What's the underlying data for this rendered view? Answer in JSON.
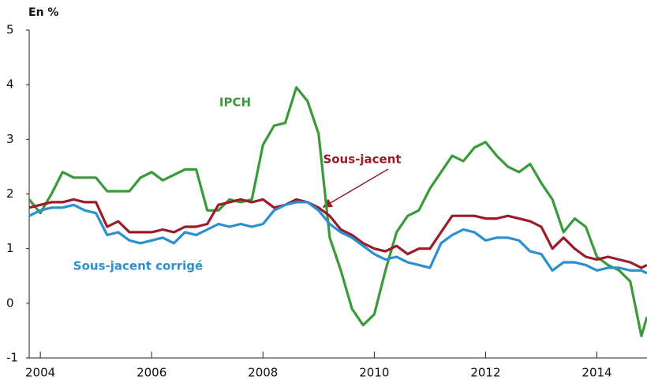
{
  "chart_data": {
    "type": "line",
    "y_label": "En %",
    "x": [
      2003.8,
      2004.0,
      2004.2,
      2004.4,
      2004.6,
      2004.8,
      2005.0,
      2005.2,
      2005.4,
      2005.6,
      2005.8,
      2006.0,
      2006.2,
      2006.4,
      2006.6,
      2006.8,
      2007.0,
      2007.2,
      2007.4,
      2007.6,
      2007.8,
      2008.0,
      2008.2,
      2008.4,
      2008.6,
      2008.8,
      2009.0,
      2009.2,
      2009.4,
      2009.6,
      2009.8,
      2010.0,
      2010.2,
      2010.4,
      2010.6,
      2010.8,
      2011.0,
      2011.2,
      2011.4,
      2011.6,
      2011.8,
      2012.0,
      2012.2,
      2012.4,
      2012.6,
      2012.8,
      2013.0,
      2013.2,
      2013.4,
      2013.6,
      2013.8,
      2014.0,
      2014.2,
      2014.4,
      2014.6,
      2014.8,
      2014.9
    ],
    "series": [
      {
        "name": "IPCH",
        "color": "#3a9a3a",
        "values": [
          1.9,
          1.65,
          2.0,
          2.4,
          2.3,
          2.3,
          2.3,
          2.05,
          2.05,
          2.05,
          2.3,
          2.4,
          2.25,
          2.35,
          2.45,
          2.45,
          1.7,
          1.7,
          1.9,
          1.85,
          1.9,
          2.9,
          3.25,
          3.3,
          3.95,
          3.7,
          3.1,
          1.2,
          0.6,
          -0.1,
          -0.4,
          -0.2,
          0.6,
          1.3,
          1.6,
          1.7,
          2.1,
          2.4,
          2.7,
          2.6,
          2.85,
          2.95,
          2.7,
          2.5,
          2.4,
          2.55,
          2.2,
          1.9,
          1.3,
          1.55,
          1.4,
          0.85,
          0.7,
          0.6,
          0.4,
          -0.6,
          -0.25
        ]
      },
      {
        "name": "Sous-jacent",
        "color": "#9b1c28",
        "values": [
          1.75,
          1.8,
          1.85,
          1.85,
          1.9,
          1.85,
          1.85,
          1.4,
          1.5,
          1.3,
          1.3,
          1.3,
          1.35,
          1.3,
          1.4,
          1.4,
          1.45,
          1.8,
          1.85,
          1.9,
          1.85,
          1.9,
          1.75,
          1.8,
          1.9,
          1.85,
          1.75,
          1.6,
          1.35,
          1.25,
          1.1,
          1.0,
          0.95,
          1.05,
          0.9,
          1.0,
          1.0,
          1.3,
          1.6,
          1.6,
          1.6,
          1.55,
          1.55,
          1.6,
          1.55,
          1.5,
          1.4,
          1.0,
          1.2,
          1.0,
          0.85,
          0.8,
          0.85,
          0.8,
          0.75,
          0.65,
          0.7
        ]
      },
      {
        "name": "Sous-jacent corrigé",
        "color": "#2a90d0",
        "values": [
          1.6,
          1.7,
          1.75,
          1.75,
          1.8,
          1.7,
          1.65,
          1.25,
          1.3,
          1.15,
          1.1,
          1.15,
          1.2,
          1.1,
          1.3,
          1.25,
          1.35,
          1.45,
          1.4,
          1.45,
          1.4,
          1.45,
          1.7,
          1.8,
          1.85,
          1.85,
          1.7,
          1.45,
          1.3,
          1.2,
          1.05,
          0.9,
          0.8,
          0.85,
          0.75,
          0.7,
          0.65,
          1.1,
          1.25,
          1.35,
          1.3,
          1.15,
          1.2,
          1.2,
          1.15,
          0.95,
          0.9,
          0.6,
          0.75,
          0.75,
          0.7,
          0.6,
          0.65,
          0.65,
          0.6,
          0.6,
          0.55
        ]
      }
    ],
    "xlim": [
      2003.8,
      2014.9
    ],
    "xticks": [
      2004,
      2006,
      2008,
      2010,
      2012,
      2014
    ],
    "ylim": [
      -1,
      5
    ],
    "yticks": [
      -1,
      0,
      1,
      2,
      3,
      4,
      5
    ],
    "grid": false
  }
}
